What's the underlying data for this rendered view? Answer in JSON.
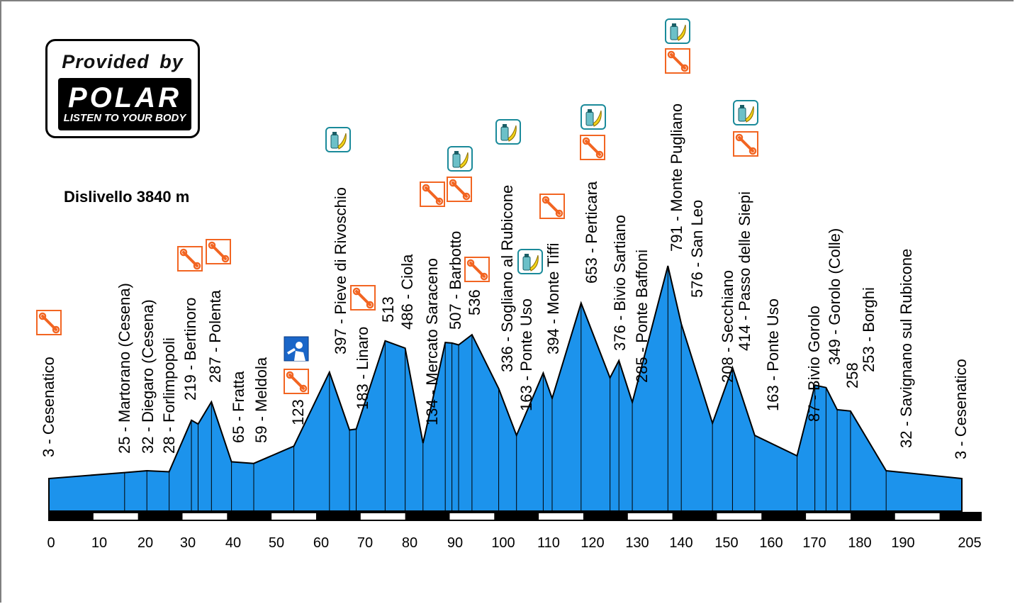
{
  "logo": {
    "provided_by": "Provided by",
    "brand": "POLAR",
    "tagline": "LISTEN TO YOUR BODY"
  },
  "elevation_gain": "Dislivello 3840 m",
  "colors": {
    "profile_fill": "#1c93ec",
    "profile_stroke": "#000000",
    "icon_orange": "#f26522",
    "icon_teal": "#1a8a9a",
    "icon_blue": "#1a66c8"
  },
  "chart_data": {
    "type": "area",
    "title": "",
    "xlabel": "",
    "ylabel": "",
    "x_unit": "km",
    "y_unit": "m",
    "xlim": [
      0,
      205
    ],
    "ylim": [
      0,
      900
    ],
    "x_ticks": [
      0,
      10,
      20,
      30,
      40,
      50,
      60,
      70,
      80,
      90,
      100,
      110,
      120,
      130,
      140,
      150,
      160,
      170,
      180,
      190,
      205
    ],
    "x_tick_labels": [
      "0",
      "10",
      "20",
      "30",
      "40",
      "50",
      "60",
      "70",
      "80",
      "90",
      "100",
      "110",
      "120",
      "130",
      "140",
      "150",
      "160",
      "170",
      "180",
      "190",
      "205"
    ],
    "profile": [
      {
        "x": 0,
        "y": 3,
        "label": "3 - Cesenatico"
      },
      {
        "x": 17,
        "y": 25,
        "label": "25 - Martorano (Cesena)"
      },
      {
        "x": 22,
        "y": 32,
        "label": "32 - Diegaro (Cesena)"
      },
      {
        "x": 27,
        "y": 28,
        "label": "28 - Forlimpopoli"
      },
      {
        "x": 32,
        "y": 219,
        "label": "219 - Bertinoro"
      },
      {
        "x": 33.5,
        "y": 205,
        "label": ""
      },
      {
        "x": 36.5,
        "y": 287,
        "label": "287 - Polenta"
      },
      {
        "x": 41,
        "y": 65,
        "label": "65 - Fratta"
      },
      {
        "x": 46,
        "y": 59,
        "label": "59 - Meldola"
      },
      {
        "x": 55,
        "y": 123,
        "label": "123"
      },
      {
        "x": 63,
        "y": 397,
        "label": "397 - Pieve di Rivoschio"
      },
      {
        "x": 67.5,
        "y": 183,
        "label": "183 - Linaro"
      },
      {
        "x": 69,
        "y": 186,
        "label": ""
      },
      {
        "x": 75.5,
        "y": 513,
        "label": "513"
      },
      {
        "x": 80,
        "y": 486,
        "label": "486 - Ciola"
      },
      {
        "x": 84,
        "y": 134,
        "label": "134 - Mercato Saraceno"
      },
      {
        "x": 89,
        "y": 507,
        "label": "507 - Barbotto"
      },
      {
        "x": 90.5,
        "y": 505,
        "label": ""
      },
      {
        "x": 92,
        "y": 498,
        "label": ""
      },
      {
        "x": 95,
        "y": 536,
        "label": "536"
      },
      {
        "x": 101,
        "y": 336,
        "label": "336 - Sogliano al Rubicone"
      },
      {
        "x": 105,
        "y": 163,
        "label": "163 - Ponte Uso"
      },
      {
        "x": 111,
        "y": 394,
        "label": "394 - Monte Tiffi"
      },
      {
        "x": 113,
        "y": 300,
        "label": ""
      },
      {
        "x": 119.5,
        "y": 653,
        "label": "653 - Perticara"
      },
      {
        "x": 126,
        "y": 376,
        "label": "376 - Bivio Sartiano"
      },
      {
        "x": 128,
        "y": 440,
        "label": ""
      },
      {
        "x": 131,
        "y": 285,
        "label": "285 - Ponte Baffoni"
      },
      {
        "x": 139,
        "y": 791,
        "label": "791 - Monte Pugliano"
      },
      {
        "x": 142,
        "y": 576,
        "label": "576 - San Leo"
      },
      {
        "x": 149,
        "y": 208,
        "label": "208 - Secchiano"
      },
      {
        "x": 153.5,
        "y": 414,
        "label": "414 - Passo delle Siepi"
      },
      {
        "x": 158.5,
        "y": 163,
        "label": "163 - Ponte Uso"
      },
      {
        "x": 168,
        "y": 87,
        "label": "87 - Bivio Gorolo"
      },
      {
        "x": 172,
        "y": 349,
        "label": "349 - Gorolo (Colle)"
      },
      {
        "x": 174.5,
        "y": 340,
        "label": ""
      },
      {
        "x": 177,
        "y": 258,
        "label": "258"
      },
      {
        "x": 180,
        "y": 253,
        "label": "253 - Borghi"
      },
      {
        "x": 188,
        "y": 32,
        "label": "32 - Savignano sul Rubicone"
      },
      {
        "x": 205,
        "y": 3,
        "label": "3 - Cesenatico"
      }
    ],
    "dividers": [
      0,
      17,
      22,
      27,
      32,
      33.5,
      36.5,
      41,
      46,
      55,
      63,
      67.5,
      69,
      75.5,
      80,
      84,
      89,
      90.5,
      92,
      95,
      101,
      105,
      111,
      113,
      119.5,
      126,
      128,
      131,
      139,
      142,
      149,
      153.5,
      158.5,
      168,
      172,
      174.5,
      177,
      180,
      188,
      205
    ],
    "markers": [
      {
        "x": 0,
        "stack": [
          "mechanic"
        ]
      },
      {
        "x": 32,
        "stack": [
          "mechanic"
        ]
      },
      {
        "x": 37,
        "stack": [
          "mechanic"
        ]
      },
      {
        "x": 55,
        "stack": [
          "mechanic",
          "water"
        ]
      },
      {
        "x": 63,
        "stack": [
          "feed"
        ]
      },
      {
        "x": 69,
        "stack": [
          "mechanic"
        ]
      },
      {
        "x": 84,
        "stack": [
          "mechanic"
        ]
      },
      {
        "x": 89,
        "stack": [
          "mechanic",
          "feed"
        ]
      },
      {
        "x": 95,
        "stack": [
          "mechanic"
        ]
      },
      {
        "x": 106,
        "stack": [
          "feed"
        ]
      },
      {
        "x": 103,
        "stack": [
          "feed"
        ]
      },
      {
        "x": 111,
        "stack": [
          "mechanic"
        ]
      },
      {
        "x": 120.5,
        "stack": [
          "mechanic",
          "feed"
        ]
      },
      {
        "x": 139,
        "stack": [
          "mechanic",
          "feed"
        ]
      },
      {
        "x": 154,
        "stack": [
          "mechanic",
          "feed"
        ]
      }
    ]
  }
}
